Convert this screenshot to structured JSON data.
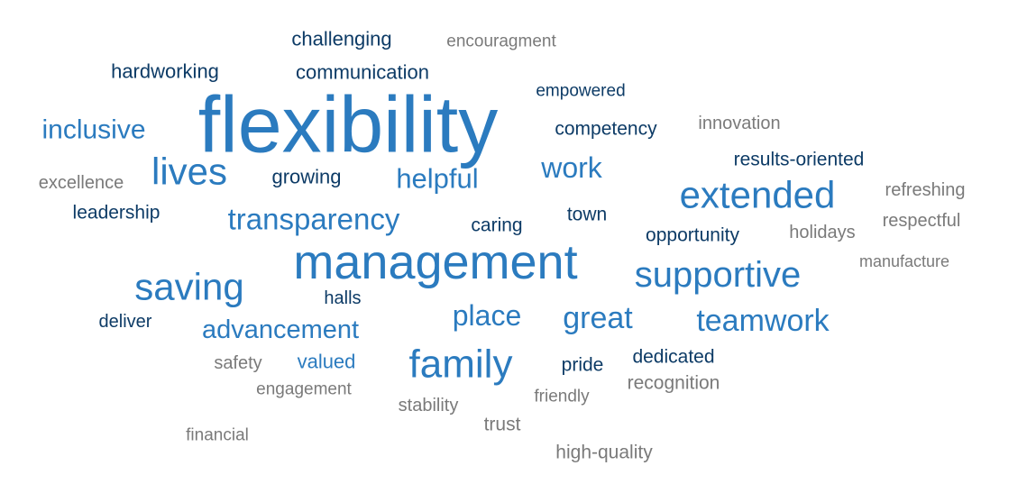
{
  "word_cloud": {
    "colors": {
      "dark_navy": "#0d3b66",
      "medium_blue": "#2b7bbf",
      "gray": "#7a7a7a"
    },
    "words": [
      {
        "text": "flexibility",
        "color": "medium_blue"
      },
      {
        "text": "management",
        "color": "medium_blue"
      },
      {
        "text": "extended",
        "color": "medium_blue"
      },
      {
        "text": "supportive",
        "color": "medium_blue"
      },
      {
        "text": "family",
        "color": "medium_blue"
      },
      {
        "text": "lives",
        "color": "medium_blue"
      },
      {
        "text": "saving",
        "color": "medium_blue"
      },
      {
        "text": "transparency",
        "color": "medium_blue"
      },
      {
        "text": "teamwork",
        "color": "medium_blue"
      },
      {
        "text": "great",
        "color": "medium_blue"
      },
      {
        "text": "place",
        "color": "medium_blue"
      },
      {
        "text": "advancement",
        "color": "medium_blue"
      },
      {
        "text": "work",
        "color": "medium_blue"
      },
      {
        "text": "helpful",
        "color": "medium_blue"
      },
      {
        "text": "inclusive",
        "color": "medium_blue"
      },
      {
        "text": "valued",
        "color": "medium_blue"
      },
      {
        "text": "challenging",
        "color": "dark_navy"
      },
      {
        "text": "hardworking",
        "color": "dark_navy"
      },
      {
        "text": "communication",
        "color": "dark_navy"
      },
      {
        "text": "empowered",
        "color": "dark_navy"
      },
      {
        "text": "competency",
        "color": "dark_navy"
      },
      {
        "text": "results-oriented",
        "color": "dark_navy"
      },
      {
        "text": "growing",
        "color": "dark_navy"
      },
      {
        "text": "leadership",
        "color": "dark_navy"
      },
      {
        "text": "caring",
        "color": "dark_navy"
      },
      {
        "text": "town",
        "color": "dark_navy"
      },
      {
        "text": "opportunity",
        "color": "dark_navy"
      },
      {
        "text": "halls",
        "color": "dark_navy"
      },
      {
        "text": "deliver",
        "color": "dark_navy"
      },
      {
        "text": "pride",
        "color": "dark_navy"
      },
      {
        "text": "dedicated",
        "color": "dark_navy"
      },
      {
        "text": "encouragment",
        "color": "gray"
      },
      {
        "text": "innovation",
        "color": "gray"
      },
      {
        "text": "excellence",
        "color": "gray"
      },
      {
        "text": "refreshing",
        "color": "gray"
      },
      {
        "text": "respectful",
        "color": "gray"
      },
      {
        "text": "holidays",
        "color": "gray"
      },
      {
        "text": "manufacture",
        "color": "gray"
      },
      {
        "text": "safety",
        "color": "gray"
      },
      {
        "text": "engagement",
        "color": "gray"
      },
      {
        "text": "stability",
        "color": "gray"
      },
      {
        "text": "friendly",
        "color": "gray"
      },
      {
        "text": "recognition",
        "color": "gray"
      },
      {
        "text": "trust",
        "color": "gray"
      },
      {
        "text": "financial",
        "color": "gray"
      },
      {
        "text": "high-quality",
        "color": "gray"
      }
    ]
  }
}
